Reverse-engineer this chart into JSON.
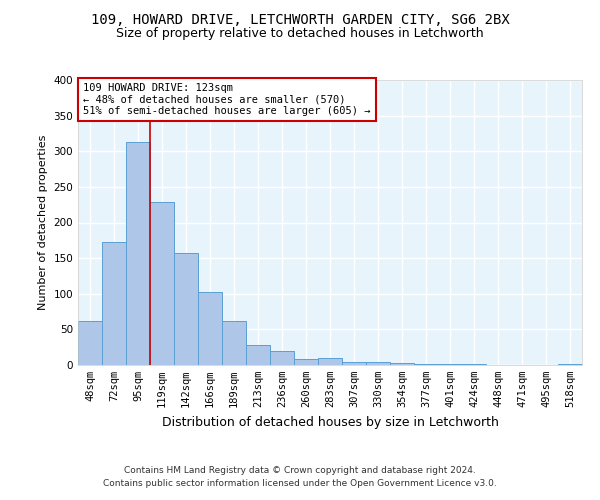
{
  "title1": "109, HOWARD DRIVE, LETCHWORTH GARDEN CITY, SG6 2BX",
  "title2": "Size of property relative to detached houses in Letchworth",
  "xlabel": "Distribution of detached houses by size in Letchworth",
  "ylabel": "Number of detached properties",
  "categories": [
    "48sqm",
    "72sqm",
    "95sqm",
    "119sqm",
    "142sqm",
    "166sqm",
    "189sqm",
    "213sqm",
    "236sqm",
    "260sqm",
    "283sqm",
    "307sqm",
    "330sqm",
    "354sqm",
    "377sqm",
    "401sqm",
    "424sqm",
    "448sqm",
    "471sqm",
    "495sqm",
    "518sqm"
  ],
  "values": [
    62,
    172,
    313,
    229,
    157,
    102,
    62,
    28,
    20,
    8,
    10,
    4,
    4,
    3,
    1,
    2,
    1,
    0,
    0,
    0,
    1
  ],
  "bar_color": "#aec6e8",
  "bar_edge_color": "#5a9fd4",
  "background_color": "#e8f4fc",
  "grid_color": "#ffffff",
  "fig_background": "#ffffff",
  "vline_color": "#cc0000",
  "vline_x_index": 3,
  "annotation_text": "109 HOWARD DRIVE: 123sqm\n← 48% of detached houses are smaller (570)\n51% of semi-detached houses are larger (605) →",
  "annotation_box_color": "#ffffff",
  "annotation_box_edge_color": "#cc0000",
  "footer1": "Contains HM Land Registry data © Crown copyright and database right 2024.",
  "footer2": "Contains public sector information licensed under the Open Government Licence v3.0.",
  "ylim": [
    0,
    400
  ],
  "title1_fontsize": 10,
  "title2_fontsize": 9,
  "xlabel_fontsize": 9,
  "ylabel_fontsize": 8,
  "tick_fontsize": 7.5,
  "annotation_fontsize": 7.5,
  "footer_fontsize": 6.5
}
